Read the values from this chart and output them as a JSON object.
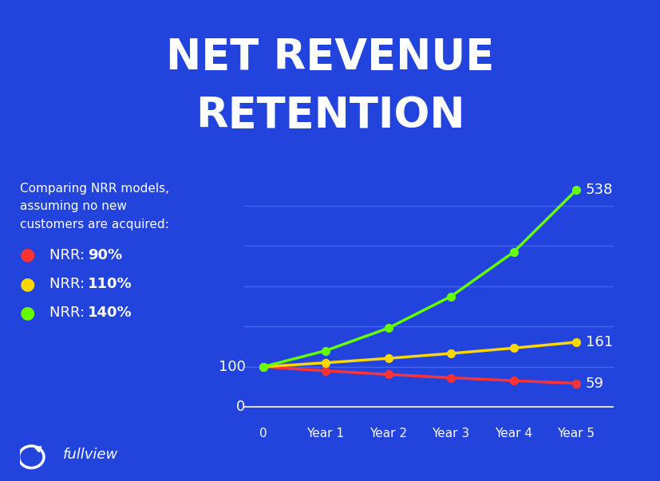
{
  "title_line1": "NET REVENUE",
  "title_line2": "RETENTION",
  "bg_color": "#2244DD",
  "text_color": "#FFFFFF",
  "description": "Comparing NRR models,\nassuming no new\ncustomers are acquired:",
  "x_labels": [
    "0",
    "Year 1",
    "Year 2",
    "Year 3",
    "Year 4",
    "Year 5"
  ],
  "x_values": [
    0,
    1,
    2,
    3,
    4,
    5
  ],
  "series": [
    {
      "name": "NRR: 90%",
      "pct": "90%",
      "color": "#FF3333",
      "values": [
        100,
        90,
        81,
        72.9,
        65.6,
        59
      ],
      "end_label": "59"
    },
    {
      "name": "NRR: 110%",
      "pct": "110%",
      "color": "#FFD700",
      "values": [
        100,
        110,
        121,
        133.1,
        146.4,
        161
      ],
      "end_label": "161"
    },
    {
      "name": "NRR: 140%",
      "pct": "140%",
      "color": "#66FF00",
      "values": [
        100,
        140,
        196,
        274.4,
        384.2,
        538
      ],
      "end_label": "538"
    }
  ],
  "start_label": "100",
  "zero_label": "0",
  "grid_color": "#4466EE",
  "grid_linewidth": 1.0,
  "marker_size": 7,
  "line_width": 2.5,
  "title_fontsize": 38,
  "legend_fontsize": 13,
  "annotation_fontsize": 13,
  "axis_fontsize": 11,
  "desc_fontsize": 11,
  "logo_text": "fullview",
  "logo_fontsize": 13
}
